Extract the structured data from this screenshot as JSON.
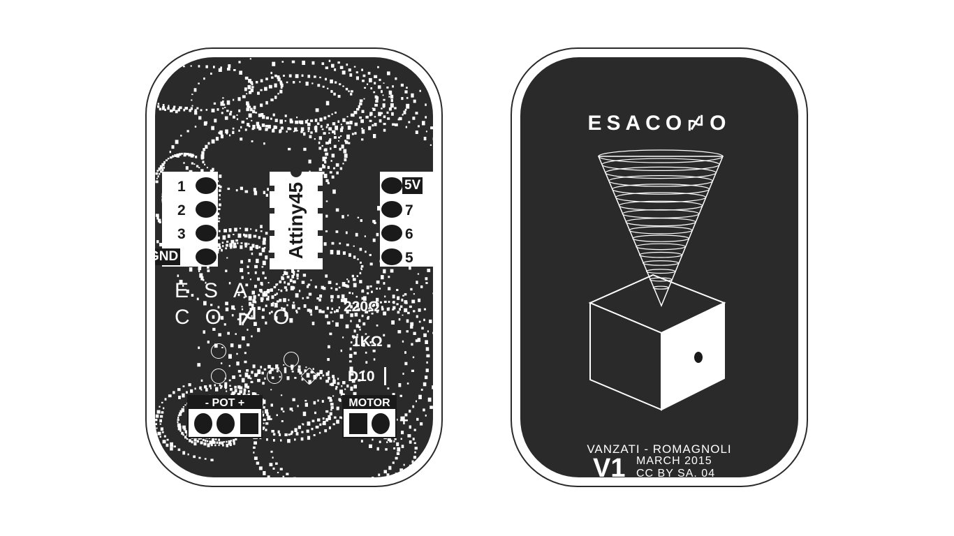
{
  "front": {
    "left_header": {
      "pins": [
        "1",
        "2",
        "3"
      ],
      "gnd_label": "GND"
    },
    "right_header": {
      "top_label": "5V",
      "pins": [
        "7",
        "6",
        "5"
      ]
    },
    "chip_label": "Attiny45",
    "logo_line1": "ESA-",
    "logo_line2": "CO",
    "logo_line2_end": "O",
    "resistor_1": "220Ω",
    "resistor_2": "1KΩ",
    "diode_label": "D10",
    "pot": {
      "title": "- POT +"
    },
    "motor": {
      "title": "MOTOR",
      "plus": "+"
    }
  },
  "back": {
    "title_prefix": "ESACO",
    "title_suffix": "O",
    "authors": "VANZATI - ROMAGNOLI",
    "version": "V1",
    "date": "MARCH 2015",
    "license": "CC BY SA. 04"
  },
  "colors": {
    "board": "#2a2a2a",
    "silkscreen": "#ffffff",
    "pad": "#1a1a1a"
  }
}
